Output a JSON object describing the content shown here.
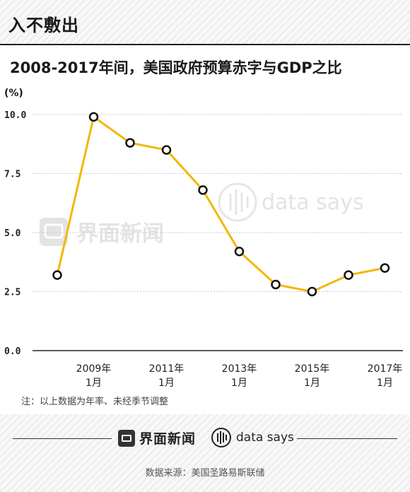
{
  "header": {
    "brand": "入不敷出"
  },
  "title": "2008-2017年间，美国政府预算赤字与GDP之比",
  "unit_label": "(%)",
  "note": "注：以上数据为年率、未经季节调整",
  "footer": {
    "logo_jiemian": "界面新闻",
    "logo_datasays": "data says",
    "source": "数据来源：美国圣路易斯联储"
  },
  "colors": {
    "line": "#f2b705",
    "marker_stroke": "#111111",
    "marker_fill": "#ffffff",
    "grid": "#c8c8c8",
    "axis": "#222222"
  },
  "chart_data": {
    "type": "line",
    "title": "2008-2017年间，美国政府预算赤字与GDP之比",
    "ylabel": "(%)",
    "ylim": [
      0,
      10
    ],
    "yticks": [
      "0.0",
      "2.5",
      "5.0",
      "7.5",
      "10.0"
    ],
    "x": [
      2008,
      2009,
      2010,
      2011,
      2012,
      2013,
      2014,
      2015,
      2016,
      2017
    ],
    "xticks": [
      {
        "x": 2009,
        "line1": "2009年",
        "line2": "1月"
      },
      {
        "x": 2011,
        "line1": "2011年",
        "line2": "1月"
      },
      {
        "x": 2013,
        "line1": "2013年",
        "line2": "1月"
      },
      {
        "x": 2015,
        "line1": "2015年",
        "line2": "1月"
      },
      {
        "x": 2017,
        "line1": "2017年",
        "line2": "1月"
      }
    ],
    "series": [
      {
        "values": [
          3.2,
          9.9,
          8.8,
          8.5,
          6.8,
          4.2,
          2.8,
          2.5,
          3.2,
          3.5
        ]
      }
    ],
    "grid": true,
    "watermarks": [
      "界面新闻",
      "data says"
    ]
  }
}
